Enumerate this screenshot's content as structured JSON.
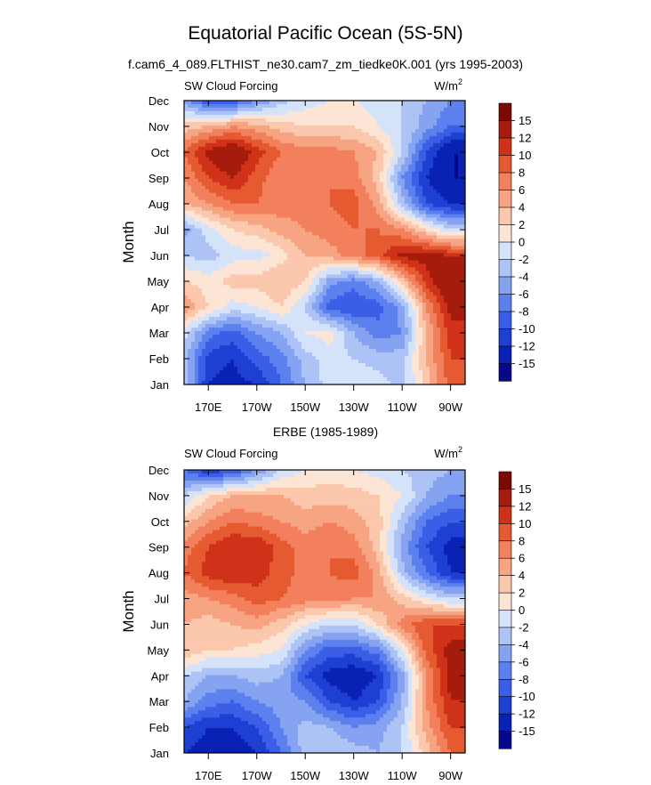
{
  "figure": {
    "title": "Equatorial Pacific Ocean (5S-5N)",
    "subtitle": "f.cam6_4_089.FLTHIST_ne30.cam7_zm_tiedke0K.001 (yrs 1995-2003)"
  },
  "chart_data": [
    {
      "type": "heatmap",
      "title": "",
      "left_label": "SW Cloud Forcing",
      "units": "W/m",
      "units_sup": "2",
      "ylabel": "Month",
      "xlabel": "",
      "x_ticks": [
        "170E",
        "170W",
        "150W",
        "130W",
        "110W",
        "90W"
      ],
      "x_tick_lons": [
        170,
        190,
        210,
        230,
        250,
        270
      ],
      "xlim": [
        160,
        276
      ],
      "y_ticks": [
        "Jan",
        "Feb",
        "Mar",
        "Apr",
        "May",
        "Jun",
        "Jul",
        "Aug",
        "Sep",
        "Oct",
        "Nov",
        "Dec"
      ],
      "colorbar_labels": [
        "15",
        "12",
        "10",
        "8",
        "6",
        "4",
        "2",
        "0",
        "-2",
        "-4",
        "-6",
        "-8",
        "-10",
        "-12",
        "-15"
      ],
      "levels": [
        -15,
        -12,
        -10,
        -8,
        -6,
        -4,
        -2,
        0,
        2,
        4,
        6,
        8,
        10,
        12,
        15
      ],
      "colors": [
        "#08088a",
        "#0a22b4",
        "#1e40d2",
        "#3a5ee6",
        "#5c80ee",
        "#86a3f2",
        "#adc3f6",
        "#d4e2fa",
        "#fde5d6",
        "#fbc7ad",
        "#f7a482",
        "#f2805c",
        "#e65a32",
        "#cf3218",
        "#a51c0c",
        "#7a0a04"
      ],
      "lon_grid": [
        160,
        170,
        180,
        190,
        200,
        210,
        220,
        230,
        240,
        250,
        260,
        270,
        276
      ],
      "values": [
        [
          -2,
          -12,
          -13,
          -12,
          -8,
          -4,
          -1,
          0,
          -1,
          -3,
          3,
          9,
          9
        ],
        [
          -3,
          -11,
          -12,
          -9,
          -7,
          -3,
          -1,
          -2,
          -3,
          -3,
          4,
          10,
          10
        ],
        [
          -1,
          -7,
          -9,
          -6,
          -4,
          0,
          1,
          -4,
          -7,
          -6,
          4,
          11,
          11
        ],
        [
          6,
          2,
          -1,
          0,
          2,
          -2,
          -9,
          -10,
          -9,
          -5,
          6,
          13,
          13
        ],
        [
          2,
          1,
          3,
          3,
          4,
          2,
          -5,
          -7,
          -4,
          3,
          11,
          15,
          15
        ],
        [
          -2,
          -3,
          -1,
          -1,
          1,
          4,
          5,
          7,
          9,
          13,
          13,
          12,
          12
        ],
        [
          -5,
          -1,
          2,
          3,
          5,
          6,
          7,
          8,
          8,
          6,
          2,
          -2,
          -2
        ],
        [
          4,
          6,
          8,
          8,
          7,
          7,
          8,
          9,
          5,
          -3,
          -10,
          -12,
          -12
        ],
        [
          6,
          10,
          12,
          9,
          6,
          6,
          8,
          7,
          3,
          -6,
          -12,
          -15,
          -15
        ],
        [
          8,
          13,
          15,
          11,
          8,
          7,
          7,
          6,
          4,
          -2,
          -10,
          -15,
          -15
        ],
        [
          3,
          4,
          6,
          5,
          3,
          2,
          2,
          2,
          0,
          -2,
          -5,
          -8,
          -8
        ],
        [
          -5,
          -10,
          -10,
          -6,
          -3,
          -1,
          0,
          0,
          -1,
          -2,
          -4,
          -6,
          -6
        ]
      ]
    },
    {
      "type": "heatmap",
      "title": "ERBE (1985-1989)",
      "left_label": "SW Cloud Forcing",
      "units": "W/m",
      "units_sup": "2",
      "ylabel": "Month",
      "xlabel": "",
      "x_ticks": [
        "170E",
        "170W",
        "150W",
        "130W",
        "110W",
        "90W"
      ],
      "x_tick_lons": [
        170,
        190,
        210,
        230,
        250,
        270
      ],
      "xlim": [
        160,
        276
      ],
      "y_ticks": [
        "Jan",
        "Feb",
        "Mar",
        "Apr",
        "May",
        "Jun",
        "Jul",
        "Aug",
        "Sep",
        "Oct",
        "Nov",
        "Dec"
      ],
      "colorbar_labels": [
        "15",
        "12",
        "10",
        "8",
        "6",
        "4",
        "2",
        "0",
        "-2",
        "-4",
        "-6",
        "-8",
        "-10",
        "-12",
        "-15"
      ],
      "levels": [
        -15,
        -12,
        -10,
        -8,
        -6,
        -4,
        -2,
        0,
        2,
        4,
        6,
        8,
        10,
        12,
        15
      ],
      "colors": [
        "#08088a",
        "#0a22b4",
        "#1e40d2",
        "#3a5ee6",
        "#5c80ee",
        "#86a3f2",
        "#adc3f6",
        "#d4e2fa",
        "#fde5d6",
        "#fbc7ad",
        "#f7a482",
        "#f2805c",
        "#e65a32",
        "#cf3218",
        "#a51c0c",
        "#7a0a04"
      ],
      "lon_grid": [
        160,
        170,
        180,
        190,
        200,
        210,
        220,
        230,
        240,
        250,
        260,
        270,
        276
      ],
      "values": [
        [
          -12,
          -13,
          -14,
          -12,
          -8,
          -3,
          -2,
          -3,
          -4,
          -2,
          3,
          8,
          8
        ],
        [
          -10,
          -12,
          -12,
          -10,
          -6,
          -3,
          -4,
          -6,
          -5,
          -2,
          5,
          10,
          10
        ],
        [
          -4,
          -7,
          -8,
          -6,
          -5,
          -6,
          -10,
          -12,
          -10,
          -4,
          6,
          12,
          12
        ],
        [
          -2,
          -4,
          -4,
          -3,
          -4,
          -10,
          -13,
          -14,
          -12,
          -5,
          6,
          13,
          13
        ],
        [
          4,
          2,
          2,
          1,
          0,
          -6,
          -9,
          -9,
          -7,
          0,
          9,
          13,
          13
        ],
        [
          4,
          3,
          4,
          5,
          3,
          0,
          -2,
          -2,
          2,
          7,
          10,
          10,
          10
        ],
        [
          5,
          6,
          7,
          9,
          8,
          7,
          7,
          6,
          6,
          3,
          0,
          -2,
          -2
        ],
        [
          8,
          11,
          12,
          11,
          9,
          7,
          8,
          9,
          5,
          -3,
          -8,
          -12,
          -12
        ],
        [
          7,
          10,
          12,
          12,
          9,
          7,
          8,
          7,
          3,
          -5,
          -10,
          -13,
          -13
        ],
        [
          3,
          6,
          8,
          7,
          6,
          5,
          6,
          5,
          3,
          -3,
          -8,
          -10,
          -10
        ],
        [
          -2,
          2,
          4,
          4,
          4,
          3,
          3,
          3,
          2,
          0,
          -4,
          -6,
          -6
        ],
        [
          -8,
          -12,
          -10,
          -6,
          -2,
          0,
          1,
          0,
          -1,
          -2,
          -3,
          -4,
          -4
        ]
      ]
    }
  ]
}
